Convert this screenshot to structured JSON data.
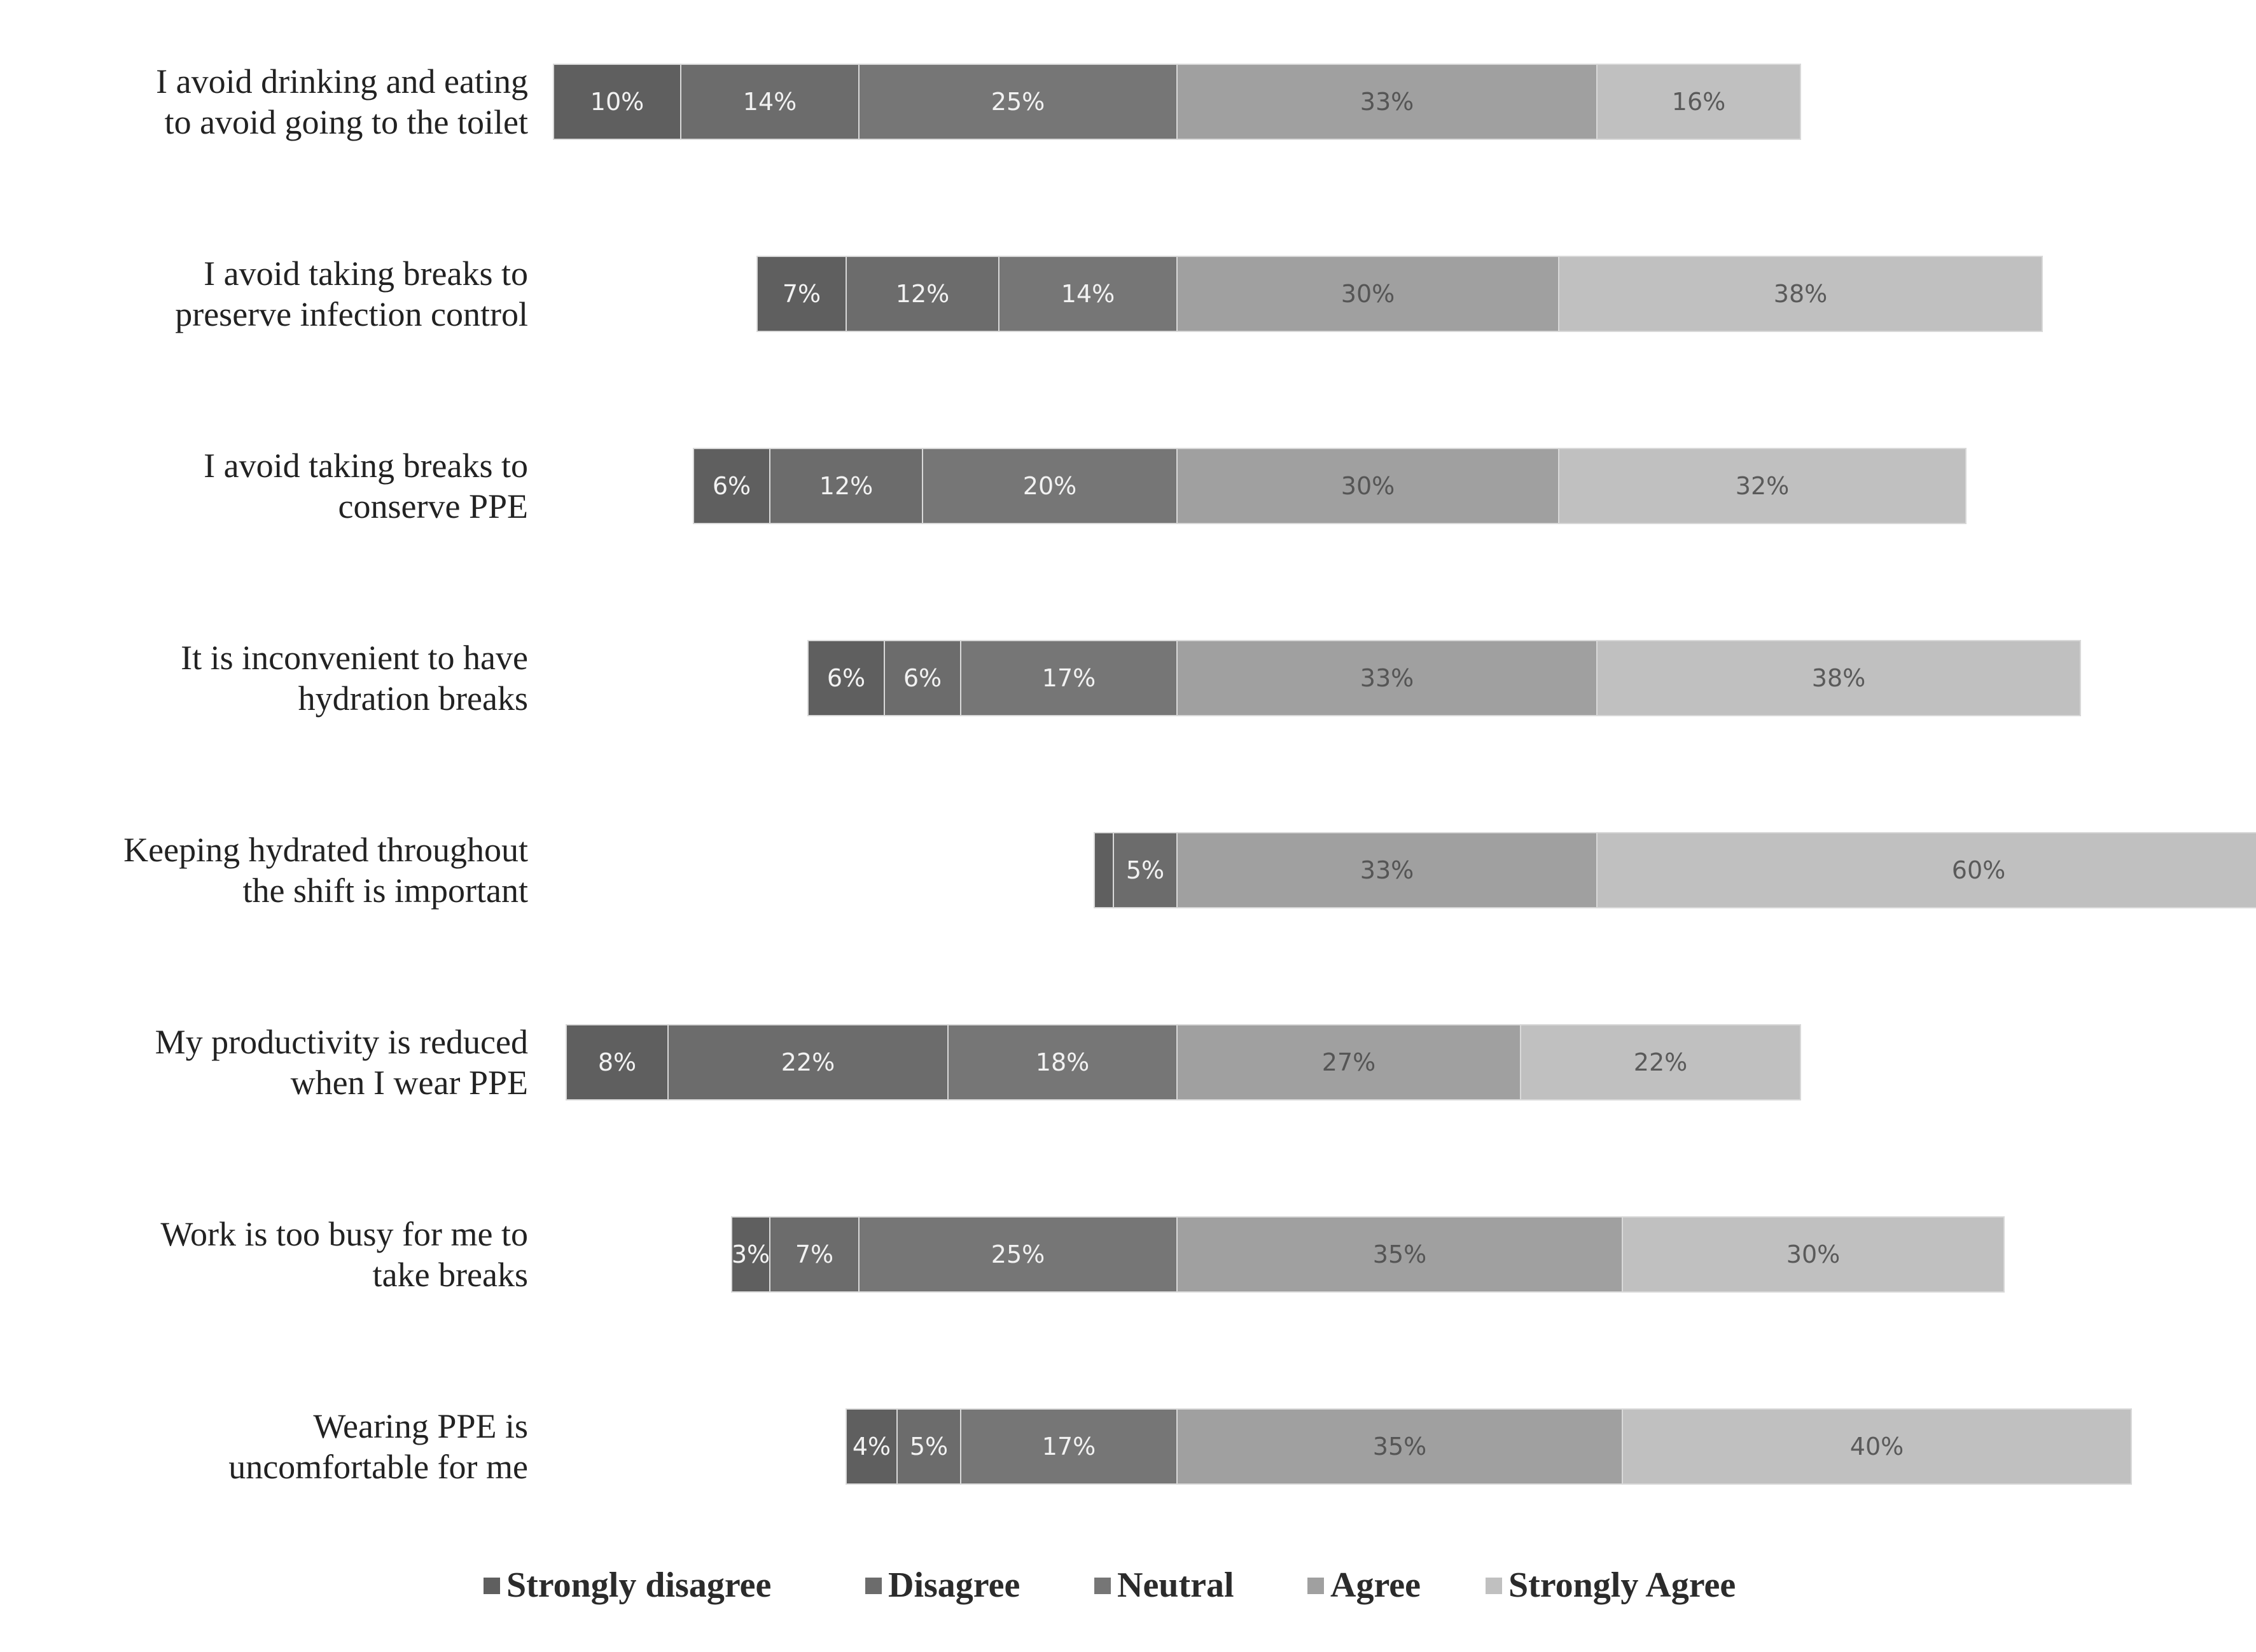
{
  "chart_data": {
    "type": "bar",
    "orientation": "horizontal",
    "stacked": true,
    "diverging": true,
    "title": "",
    "xlabel": "",
    "ylabel": "",
    "legend_position": "bottom",
    "grid": false,
    "categories": [
      [
        "I avoid drinking and eating",
        "to avoid going to the toilet"
      ],
      [
        "I avoid taking breaks to",
        "preserve infection control"
      ],
      [
        "I avoid taking breaks to",
        "conserve PPE"
      ],
      [
        "It is inconvenient to have",
        "hydration breaks"
      ],
      [
        "Keeping hydrated throughout",
        "the shift is important"
      ],
      [
        "My productivity is reduced",
        "when I wear PPE"
      ],
      [
        "Work is too busy for me to",
        "take breaks"
      ],
      [
        "Wearing PPE is",
        "uncomfortable for me"
      ]
    ],
    "series": [
      {
        "name": "Strongly disagree",
        "color": "#5f5f5f",
        "text_color": "#f2f2f2",
        "values": [
          10,
          7,
          6,
          6,
          1.5,
          8,
          3,
          4
        ],
        "labels": [
          "10%",
          "7%",
          "6%",
          "6%",
          "",
          "8%",
          "3%",
          "4%"
        ]
      },
      {
        "name": "Disagree",
        "color": "#6c6c6c",
        "text_color": "#f2f2f2",
        "values": [
          14,
          12,
          12,
          6,
          5,
          22,
          7,
          5
        ],
        "labels": [
          "14%",
          "12%",
          "12%",
          "6%",
          "5%",
          "22%",
          "7%",
          "5%"
        ]
      },
      {
        "name": "Neutral",
        "color": "#767676",
        "text_color": "#f2f2f2",
        "values": [
          25,
          14,
          20,
          17,
          0,
          18,
          25,
          17
        ],
        "labels": [
          "25%",
          "14%",
          "20%",
          "17%",
          "",
          "18%",
          "25%",
          "17%"
        ]
      },
      {
        "name": "Agree",
        "color": "#a0a0a0",
        "text_color": "#555555",
        "values": [
          33,
          30,
          30,
          33,
          33,
          27,
          35,
          35
        ],
        "labels": [
          "33%",
          "30%",
          "30%",
          "33%",
          "33%",
          "27%",
          "35%",
          "35%"
        ]
      },
      {
        "name": "Strongly Agree",
        "color": "#c0c0c0",
        "text_color": "#5a5a5a",
        "values": [
          16,
          38,
          32,
          38,
          60,
          22,
          30,
          40
        ],
        "labels": [
          "16%",
          "38%",
          "32%",
          "38%",
          "60%",
          "22%",
          "30%",
          "40%"
        ]
      }
    ]
  }
}
